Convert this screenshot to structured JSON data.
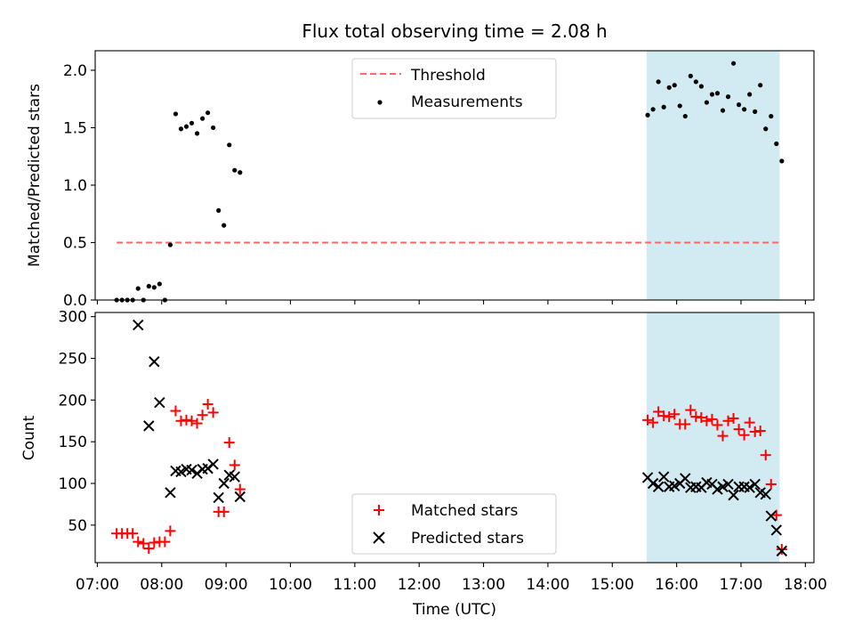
{
  "title": "Flux total observing time = 2.08 h",
  "xlabel": "Time (UTC)",
  "x_ticks": [
    "07:00",
    "08:00",
    "09:00",
    "10:00",
    "11:00",
    "12:00",
    "13:00",
    "14:00",
    "15:00",
    "16:00",
    "17:00",
    "18:00"
  ],
  "colors": {
    "threshold": "#ff6666",
    "measurements": "#000000",
    "matched": "#ff0000",
    "predicted": "#000000",
    "highlight": "#add8e6"
  },
  "chart_data": [
    {
      "type": "scatter",
      "panel": "top",
      "ylabel": "Matched/Predicted stars",
      "xlim": [
        "06:58",
        "18:08"
      ],
      "ylim": [
        0,
        2.17
      ],
      "y_ticks": [
        "0.0",
        "0.5",
        "1.0",
        "1.5",
        "2.0"
      ],
      "highlight_span": [
        "15:32",
        "17:36"
      ],
      "legend": {
        "position": "upper center",
        "items": [
          "Threshold",
          "Measurements"
        ]
      },
      "threshold": {
        "name": "Threshold",
        "y": 0.5,
        "x_start": "07:18",
        "x_end": "17:36"
      },
      "series": [
        {
          "name": "Measurements",
          "points": [
            [
              "07:18",
              0.0
            ],
            [
              "07:23",
              0.0
            ],
            [
              "07:28",
              0.0
            ],
            [
              "07:33",
              0.0
            ],
            [
              "07:38",
              0.1
            ],
            [
              "07:43",
              0.0
            ],
            [
              "07:48",
              0.12
            ],
            [
              "07:53",
              0.11
            ],
            [
              "07:58",
              0.14
            ],
            [
              "08:03",
              0.0
            ],
            [
              "08:08",
              0.48
            ],
            [
              "08:13",
              1.62
            ],
            [
              "08:18",
              1.49
            ],
            [
              "08:23",
              1.51
            ],
            [
              "08:28",
              1.54
            ],
            [
              "08:33",
              1.45
            ],
            [
              "08:38",
              1.58
            ],
            [
              "08:43",
              1.63
            ],
            [
              "08:48",
              1.5
            ],
            [
              "08:53",
              0.78
            ],
            [
              "08:58",
              0.65
            ],
            [
              "09:03",
              1.35
            ],
            [
              "09:08",
              1.13
            ],
            [
              "09:13",
              1.11
            ],
            [
              "15:33",
              1.61
            ],
            [
              "15:38",
              1.66
            ],
            [
              "15:43",
              1.9
            ],
            [
              "15:48",
              1.68
            ],
            [
              "15:53",
              1.85
            ],
            [
              "15:58",
              1.87
            ],
            [
              "16:03",
              1.69
            ],
            [
              "16:08",
              1.6
            ],
            [
              "16:13",
              1.95
            ],
            [
              "16:18",
              1.9
            ],
            [
              "16:23",
              1.86
            ],
            [
              "16:28",
              1.72
            ],
            [
              "16:33",
              1.79
            ],
            [
              "16:38",
              1.8
            ],
            [
              "16:43",
              1.65
            ],
            [
              "16:48",
              1.77
            ],
            [
              "16:53",
              2.06
            ],
            [
              "16:58",
              1.7
            ],
            [
              "17:03",
              1.66
            ],
            [
              "17:08",
              1.79
            ],
            [
              "17:13",
              1.64
            ],
            [
              "17:18",
              1.87
            ],
            [
              "17:23",
              1.49
            ],
            [
              "17:28",
              1.6
            ],
            [
              "17:33",
              1.36
            ],
            [
              "17:38",
              1.21
            ]
          ]
        }
      ]
    },
    {
      "type": "scatter",
      "panel": "bottom",
      "ylabel": "Count",
      "xlim": [
        "06:58",
        "18:08"
      ],
      "ylim": [
        5,
        305
      ],
      "y_ticks": [
        "50",
        "100",
        "150",
        "200",
        "250",
        "300"
      ],
      "highlight_span": [
        "15:32",
        "17:36"
      ],
      "legend": {
        "position": "lower center",
        "items": [
          "Matched stars",
          "Predicted stars"
        ]
      },
      "series": [
        {
          "name": "Matched stars",
          "marker": "+",
          "points": [
            [
              "07:18",
              40
            ],
            [
              "07:23",
              40
            ],
            [
              "07:28",
              40
            ],
            [
              "07:33",
              40
            ],
            [
              "07:38",
              30
            ],
            [
              "07:43",
              28
            ],
            [
              "07:48",
              22
            ],
            [
              "07:53",
              29
            ],
            [
              "07:58",
              30
            ],
            [
              "08:03",
              30
            ],
            [
              "08:08",
              43
            ],
            [
              "08:13",
              187
            ],
            [
              "08:18",
              175
            ],
            [
              "08:23",
              176
            ],
            [
              "08:28",
              175
            ],
            [
              "08:33",
              172
            ],
            [
              "08:38",
              182
            ],
            [
              "08:43",
              195
            ],
            [
              "08:48",
              185
            ],
            [
              "08:53",
              66
            ],
            [
              "08:58",
              66
            ],
            [
              "09:03",
              149
            ],
            [
              "09:08",
              122
            ],
            [
              "09:13",
              93
            ],
            [
              "15:33",
              176
            ],
            [
              "15:38",
              173
            ],
            [
              "15:43",
              186
            ],
            [
              "15:48",
              181
            ],
            [
              "15:53",
              180
            ],
            [
              "15:58",
              183
            ],
            [
              "16:03",
              171
            ],
            [
              "16:08",
              171
            ],
            [
              "16:13",
              188
            ],
            [
              "16:18",
              180
            ],
            [
              "16:23",
              179
            ],
            [
              "16:28",
              175
            ],
            [
              "16:33",
              177
            ],
            [
              "16:38",
              170
            ],
            [
              "16:43",
              157
            ],
            [
              "16:48",
              175
            ],
            [
              "16:53",
              178
            ],
            [
              "16:58",
              165
            ],
            [
              "17:03",
              158
            ],
            [
              "17:08",
              173
            ],
            [
              "17:13",
              162
            ],
            [
              "17:18",
              163
            ],
            [
              "17:23",
              134
            ],
            [
              "17:28",
              99
            ],
            [
              "17:33",
              62
            ],
            [
              "17:38",
              21
            ]
          ]
        },
        {
          "name": "Predicted stars",
          "marker": "x",
          "points": [
            [
              "07:38",
              290
            ],
            [
              "07:48",
              169
            ],
            [
              "07:53",
              246
            ],
            [
              "07:58",
              197
            ],
            [
              "08:08",
              89
            ],
            [
              "08:13",
              115
            ],
            [
              "08:18",
              114
            ],
            [
              "08:23",
              117
            ],
            [
              "08:28",
              116
            ],
            [
              "08:33",
              112
            ],
            [
              "08:38",
              117
            ],
            [
              "08:43",
              118
            ],
            [
              "08:48",
              123
            ],
            [
              "08:53",
              83
            ],
            [
              "08:58",
              100
            ],
            [
              "09:03",
              110
            ],
            [
              "09:08",
              108
            ],
            [
              "09:13",
              84
            ],
            [
              "15:33",
              107
            ],
            [
              "15:38",
              100
            ],
            [
              "15:43",
              96
            ],
            [
              "15:48",
              108
            ],
            [
              "15:53",
              96
            ],
            [
              "15:58",
              97
            ],
            [
              "16:03",
              100
            ],
            [
              "16:08",
              106
            ],
            [
              "16:13",
              95
            ],
            [
              "16:18",
              96
            ],
            [
              "16:23",
              95
            ],
            [
              "16:28",
              101
            ],
            [
              "16:33",
              99
            ],
            [
              "16:38",
              93
            ],
            [
              "16:43",
              96
            ],
            [
              "16:48",
              99
            ],
            [
              "16:53",
              86
            ],
            [
              "16:58",
              96
            ],
            [
              "17:03",
              96
            ],
            [
              "17:08",
              95
            ],
            [
              "17:13",
              99
            ],
            [
              "17:18",
              89
            ],
            [
              "17:23",
              87
            ],
            [
              "17:28",
              61
            ],
            [
              "17:33",
              44
            ],
            [
              "17:38",
              19
            ]
          ]
        }
      ]
    }
  ]
}
